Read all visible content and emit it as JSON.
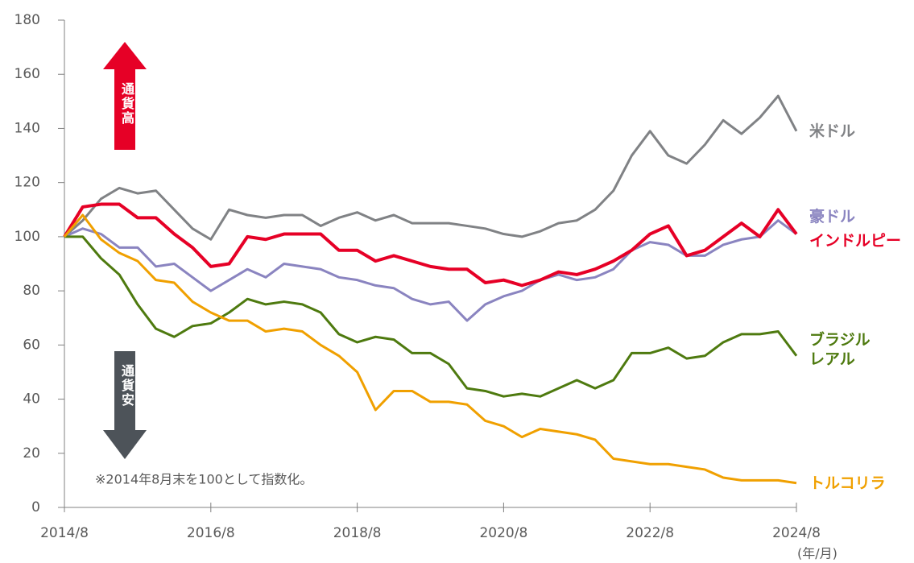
{
  "chart_data": {
    "type": "line",
    "note": "※2014年8月末を100として指数化。",
    "x_unit": "(年/月)",
    "annotations": [
      "通貨高",
      "通貨安"
    ],
    "x": [
      2014.583,
      2014.833,
      2015.083,
      2015.333,
      2015.583,
      2015.833,
      2016.083,
      2016.333,
      2016.583,
      2016.833,
      2017.083,
      2017.333,
      2017.583,
      2017.833,
      2018.083,
      2018.333,
      2018.583,
      2018.833,
      2019.083,
      2019.333,
      2019.583,
      2019.833,
      2020.083,
      2020.333,
      2020.583,
      2020.833,
      2021.083,
      2021.333,
      2021.583,
      2021.833,
      2022.083,
      2022.333,
      2022.583,
      2022.833,
      2023.083,
      2023.333,
      2023.583,
      2023.833,
      2024.083,
      2024.333,
      2024.583
    ],
    "xlim": [
      2014.583,
      2024.583
    ],
    "xticks": [
      {
        "value": 2014.583,
        "label": "2014/8"
      },
      {
        "value": 2016.583,
        "label": "2016/8"
      },
      {
        "value": 2018.583,
        "label": "2018/8"
      },
      {
        "value": 2020.583,
        "label": "2020/8"
      },
      {
        "value": 2022.583,
        "label": "2022/8"
      },
      {
        "value": 2024.583,
        "label": "2024/8"
      }
    ],
    "ylim": [
      0,
      180
    ],
    "yticks": [
      0,
      20,
      40,
      60,
      80,
      100,
      120,
      140,
      160,
      180
    ],
    "series": [
      {
        "name": "米ドル",
        "color": "#808285",
        "values": [
          100,
          106,
          114,
          118,
          116,
          117,
          110,
          103,
          99,
          110,
          108,
          107,
          108,
          108,
          104,
          107,
          109,
          106,
          108,
          105,
          105,
          105,
          104,
          103,
          101,
          100,
          102,
          105,
          106,
          110,
          117,
          130,
          139,
          130,
          127,
          134,
          143,
          138,
          144,
          152,
          139
        ]
      },
      {
        "name": "豪ドル",
        "color": "#8a84c0",
        "values": [
          100,
          103,
          101,
          96,
          96,
          89,
          90,
          85,
          80,
          84,
          88,
          85,
          90,
          89,
          88,
          85,
          84,
          82,
          81,
          77,
          75,
          76,
          69,
          75,
          78,
          80,
          84,
          86,
          84,
          85,
          88,
          95,
          98,
          97,
          93,
          93,
          97,
          99,
          100,
          106,
          101
        ]
      },
      {
        "name": "インドルピー",
        "color": "#e60026",
        "values": [
          100,
          111,
          112,
          112,
          107,
          107,
          101,
          96,
          89,
          90,
          100,
          99,
          101,
          101,
          101,
          95,
          95,
          91,
          93,
          91,
          89,
          88,
          88,
          83,
          84,
          82,
          84,
          87,
          86,
          88,
          91,
          95,
          101,
          104,
          93,
          95,
          100,
          105,
          100,
          110,
          101
        ]
      },
      {
        "name": "ブラジル\nレアル",
        "color": "#4e7a0f",
        "values": [
          100,
          100,
          92,
          86,
          75,
          66,
          63,
          67,
          68,
          72,
          77,
          75,
          76,
          75,
          72,
          64,
          61,
          63,
          62,
          57,
          57,
          53,
          44,
          43,
          41,
          42,
          41,
          44,
          47,
          44,
          47,
          57,
          57,
          59,
          55,
          56,
          61,
          64,
          64,
          65,
          56
        ]
      },
      {
        "name": "トルコリラ",
        "color": "#f0a000",
        "values": [
          100,
          108,
          99,
          94,
          91,
          84,
          83,
          76,
          72,
          69,
          69,
          65,
          66,
          65,
          60,
          56,
          50,
          36,
          43,
          43,
          39,
          39,
          38,
          32,
          30,
          26,
          29,
          28,
          27,
          25,
          18,
          17,
          16,
          16,
          15,
          14,
          11,
          10,
          10,
          10,
          9
        ]
      }
    ]
  }
}
